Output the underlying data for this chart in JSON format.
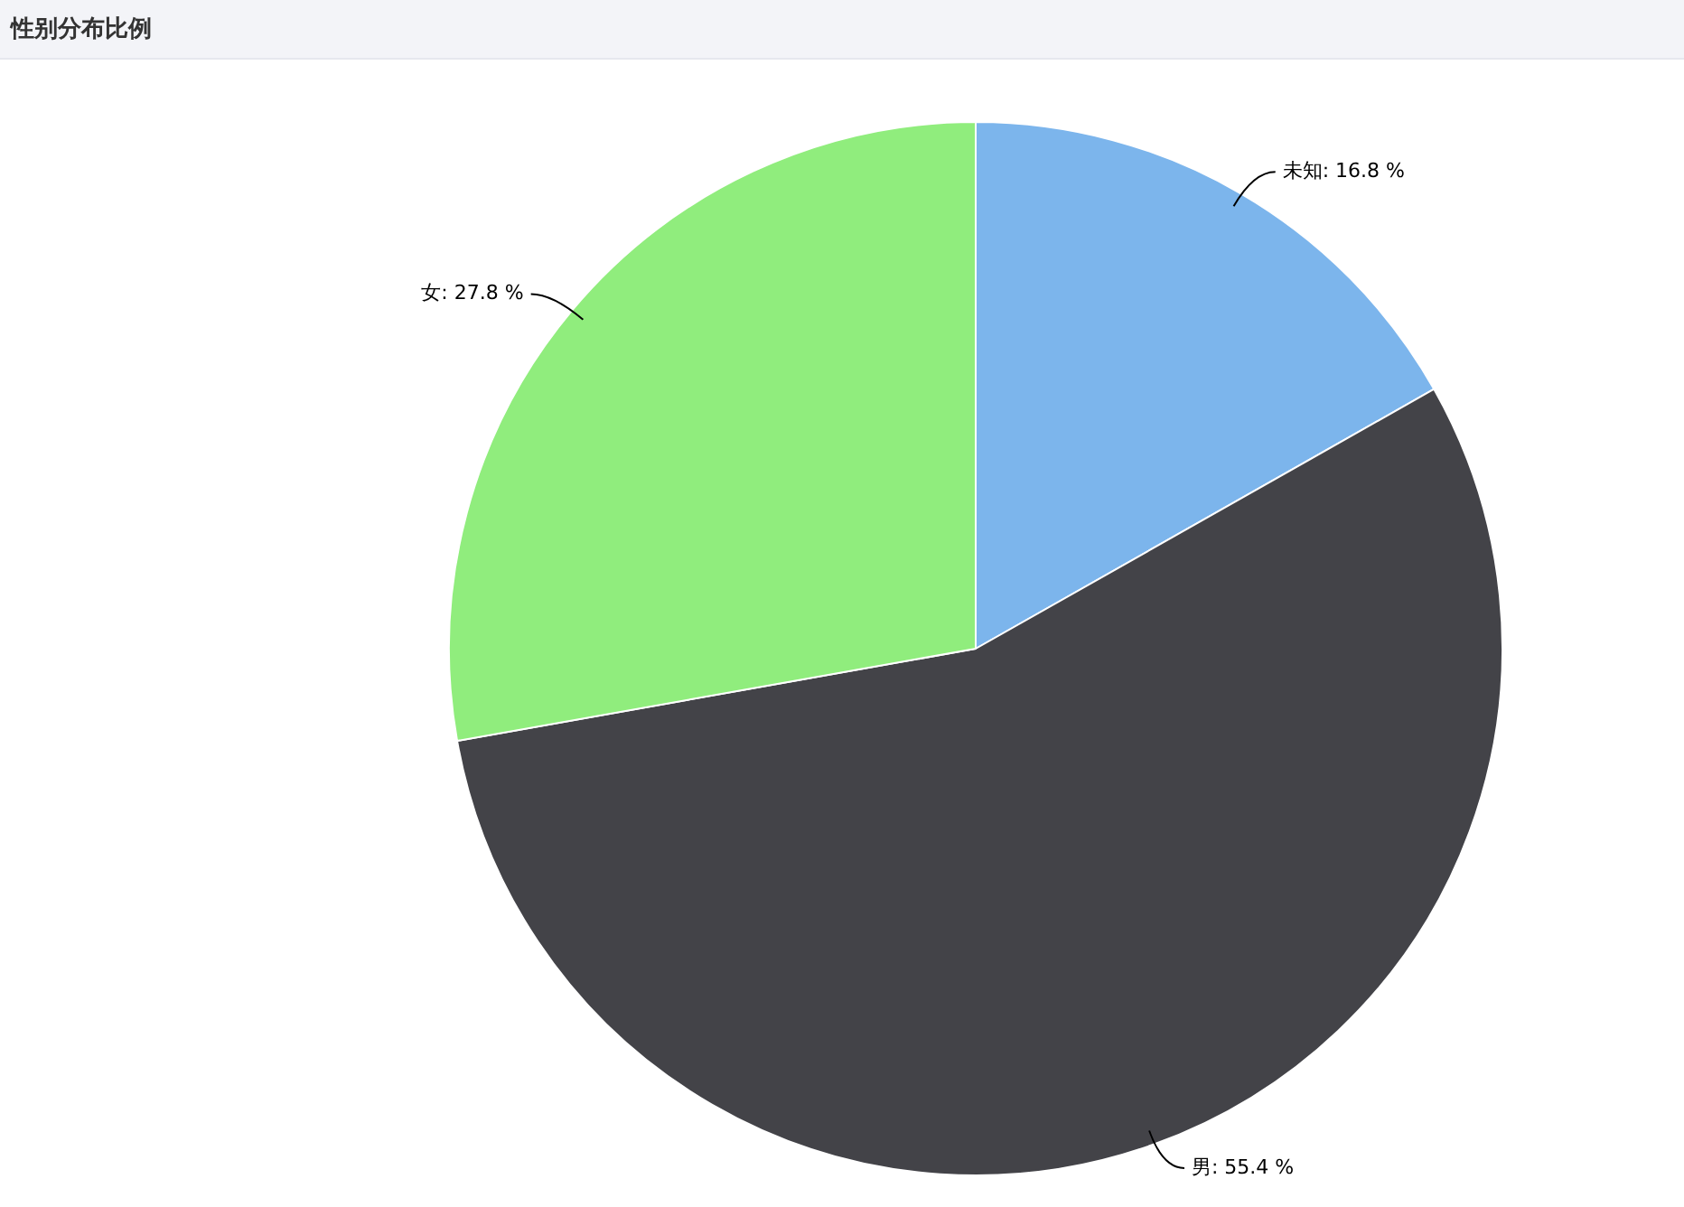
{
  "chart_data": {
    "type": "pie",
    "title": "性别分布比例",
    "categories": [
      "未知",
      "男",
      "女"
    ],
    "values": [
      16.8,
      55.4,
      27.8
    ],
    "colors": [
      "#7cb5ec",
      "#434348",
      "#90ed7d"
    ],
    "value_labels": [
      "16.8 %",
      "55.4 %",
      "27.8 %"
    ],
    "legend": false
  }
}
